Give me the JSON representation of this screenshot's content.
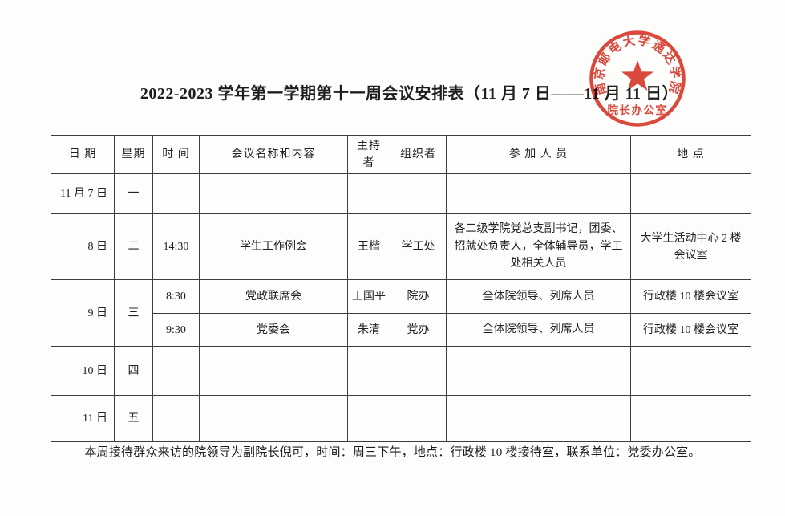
{
  "page": {
    "title": "2022-2023 学年第一学期第十一周会议安排表（11 月 7 日——11 月 11 日）",
    "footer_note": "本周接待群众来访的院领导为副院长倪可，时间：周三下午，地点：行政楼 10 楼接待室，联系单位：党委办公室。"
  },
  "stamp": {
    "arc_text": "南京邮电大学通达学院",
    "bottom_text": "院长办公室",
    "star_icon": "star-icon",
    "color": "#d83a2b"
  },
  "table": {
    "headers": [
      "日  期",
      "星期",
      "时 间",
      "会议名称和内容",
      "主持者",
      "组织者",
      "参 加 人 员",
      "地  点"
    ],
    "rows": [
      {
        "date": "11 月 7 日",
        "week": "一",
        "meetings": [
          {
            "time": "",
            "name": "",
            "host": "",
            "organizer": "",
            "participants": "",
            "location": ""
          }
        ]
      },
      {
        "date": "8 日",
        "week": "二",
        "meetings": [
          {
            "time": "14:30",
            "name": "学生工作例会",
            "host": "王楷",
            "organizer": "学工处",
            "participants": "各二级学院党总支副书记，团委、招就处负责人，全体辅导员，学工处相关人员",
            "location": "大学生活动中心 2 楼会议室"
          }
        ]
      },
      {
        "date": "9 日",
        "week": "三",
        "meetings": [
          {
            "time": "8:30",
            "name": "党政联席会",
            "host": "王国平",
            "organizer": "院办",
            "participants": "全体院领导、列席人员",
            "location": "行政楼 10 楼会议室"
          },
          {
            "time": "9:30",
            "name": "党委会",
            "host": "朱清",
            "organizer": "党办",
            "participants": "全体院领导、列席人员",
            "location": "行政楼 10 楼会议室"
          }
        ]
      },
      {
        "date": "10 日",
        "week": "四",
        "meetings": [
          {
            "time": "",
            "name": "",
            "host": "",
            "organizer": "",
            "participants": "",
            "location": ""
          }
        ]
      },
      {
        "date": "11 日",
        "week": "五",
        "meetings": [
          {
            "time": "",
            "name": "",
            "host": "",
            "organizer": "",
            "participants": "",
            "location": ""
          }
        ]
      }
    ]
  }
}
